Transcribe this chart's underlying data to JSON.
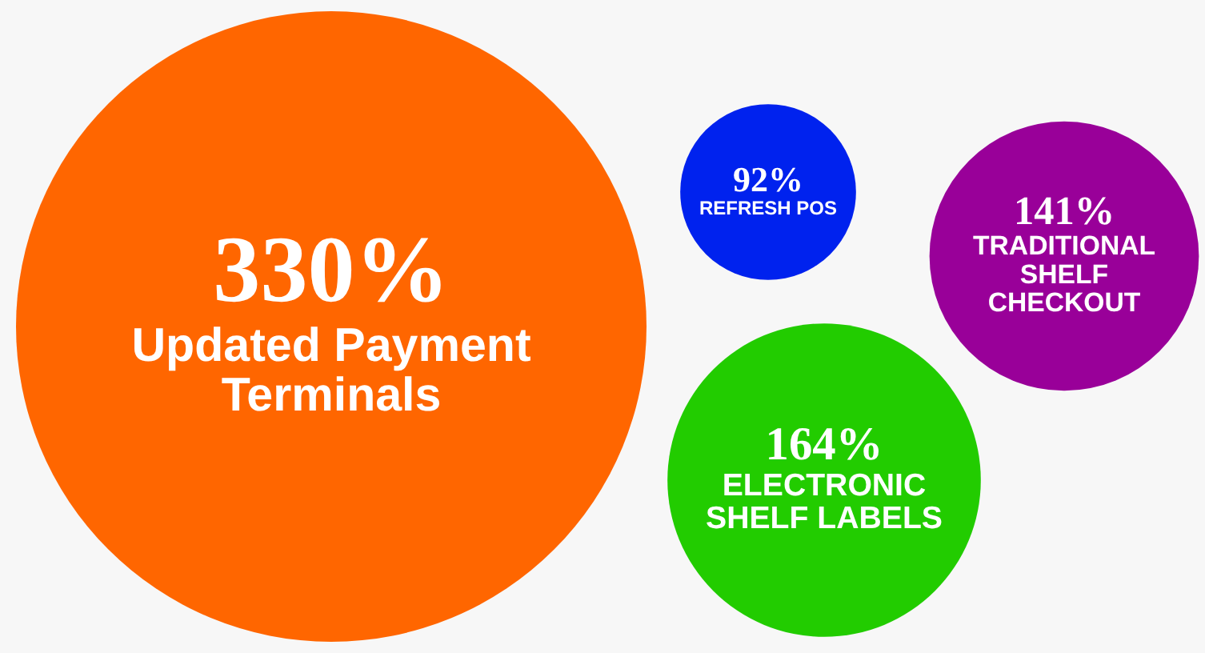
{
  "chart_data": {
    "type": "other",
    "categories": [
      "Updated Payment Terminals",
      "REFRESH POS",
      "TRADITIONAL SHELF CHECKOUT",
      "ELECTRONIC SHELF LABELS"
    ],
    "values": [
      330,
      92,
      141,
      164
    ],
    "value_labels": [
      "330%",
      "92%",
      "141%",
      "164%"
    ],
    "colors": [
      "#ff6600",
      "#0022ee",
      "#990099",
      "#22cc00"
    ]
  }
}
